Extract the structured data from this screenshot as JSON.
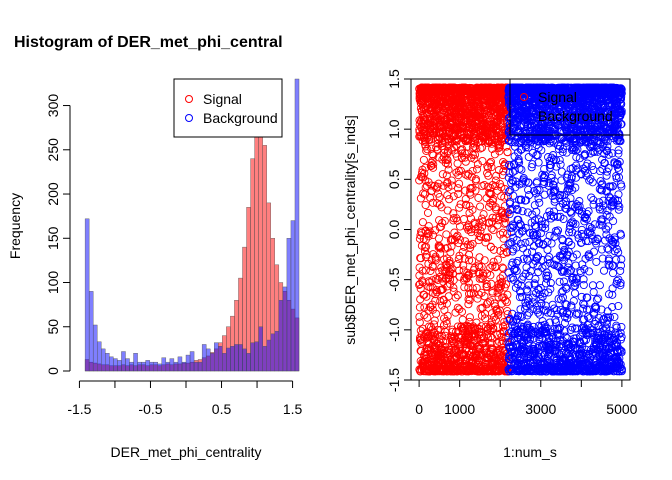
{
  "chart_data": [
    {
      "type": "histogram",
      "title": "Histogram of DER_met_phi_central",
      "xlabel": "DER_met_phi_centrality",
      "ylabel": "Frequency",
      "xlim": [
        -1.52,
        1.52
      ],
      "ylim": [
        0,
        330
      ],
      "xticks": [
        -1.5,
        -0.5,
        0.5,
        1.5
      ],
      "xtick_labels": [
        "-1.5",
        "-0.5",
        "0.5",
        "1.5"
      ],
      "xticks_minor": [
        -1.0,
        0.0,
        1.0
      ],
      "yticks": [
        0,
        50,
        100,
        150,
        200,
        250,
        300
      ],
      "ytick_labels": [
        "0",
        "50",
        "100",
        "150",
        "200",
        "250",
        "300"
      ],
      "bin_start": -1.42,
      "bin_width": 0.0568,
      "legend": {
        "position": "top-right",
        "entries": [
          "Signal",
          "Background"
        ],
        "colors": [
          "#ff0000",
          "#0000ff"
        ]
      },
      "series": [
        {
          "name": "Signal",
          "color": "#ff0000",
          "values": [
            13,
            10,
            9,
            8,
            7,
            7,
            6,
            6,
            6,
            7,
            6,
            7,
            6,
            7,
            7,
            6,
            7,
            7,
            6,
            7,
            8,
            7,
            8,
            8,
            9,
            9,
            10,
            12,
            13,
            15,
            17,
            21,
            25,
            32,
            40,
            50,
            62,
            80,
            105,
            140,
            185,
            240,
            290,
            300,
            255,
            190,
            150,
            120,
            100,
            90,
            80,
            70,
            60
          ]
        },
        {
          "name": "Background",
          "color": "#0000ff",
          "values": [
            172,
            90,
            52,
            33,
            25,
            20,
            16,
            14,
            12,
            22,
            14,
            10,
            20,
            10,
            10,
            12,
            10,
            10,
            8,
            15,
            10,
            14,
            10,
            16,
            10,
            18,
            22,
            10,
            10,
            30,
            25,
            20,
            32,
            28,
            20,
            26,
            28,
            30,
            30,
            25,
            20,
            32,
            33,
            50,
            28,
            35,
            42,
            45,
            80,
            95,
            150,
            170,
            330
          ]
        }
      ]
    },
    {
      "type": "scatter",
      "xlabel": "1:num_s",
      "ylabel": "sub$DER_met_phi_centrality[s_inds]",
      "xlim": [
        -200,
        5200
      ],
      "ylim": [
        -1.5,
        1.5
      ],
      "xticks": [
        0,
        1000,
        3000,
        5000
      ],
      "xtick_labels": [
        "0",
        "1000",
        "3000",
        "5000"
      ],
      "xticks_minor": [
        2000,
        4000
      ],
      "yticks": [
        -1.5,
        -1.0,
        -0.5,
        0.0,
        0.5,
        1.0,
        1.5
      ],
      "ytick_labels": [
        "-1.5",
        "-1.0",
        "-0.5",
        "0.0",
        "0.5",
        "1.0",
        "1.5"
      ],
      "x_split": 2200,
      "n_points": 5000,
      "y_range": [
        -1.414,
        1.414
      ],
      "legend": {
        "position": "top-right",
        "entries": [
          "Signal",
          "Background"
        ],
        "colors": [
          "#ff0000",
          "#0000ff"
        ]
      },
      "series": [
        {
          "name": "Signal",
          "color": "#ff0000",
          "x_range": [
            1,
            2200
          ],
          "points": []
        },
        {
          "name": "Background",
          "color": "#0000ff",
          "x_range": [
            2201,
            5000
          ],
          "points": []
        }
      ]
    }
  ]
}
